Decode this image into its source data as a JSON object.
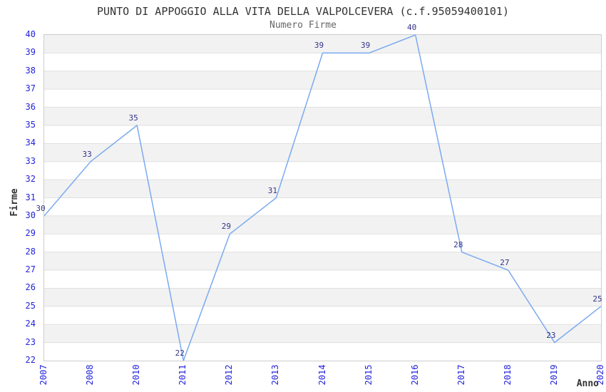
{
  "chart_data": {
    "type": "line",
    "title": "PUNTO DI APPOGGIO ALLA VITA DELLA VALPOLCEVERA (c.f.95059400101)",
    "subtitle": "Numero Firme",
    "xlabel": "Anno",
    "ylabel": "Firme",
    "categories": [
      "2007",
      "2008",
      "2010",
      "2011",
      "2012",
      "2013",
      "2014",
      "2015",
      "2016",
      "2017",
      "2018",
      "2019",
      "2020"
    ],
    "series": [
      {
        "name": "Numero Firme",
        "values": [
          30,
          33,
          35,
          22,
          29,
          31,
          39,
          39,
          40,
          28,
          27,
          23,
          25
        ]
      }
    ],
    "ylim": [
      22,
      40
    ],
    "y_tick_step": 1,
    "grid": true,
    "legend": "none",
    "data_labels_visible": true,
    "x_tick_rotation_deg": -90,
    "colors": {
      "line": "#7aaaf0",
      "tick_label": "#2222dd",
      "data_label": "#333388",
      "band": "#f2f2f2",
      "gridline": "#e0e0e0",
      "plot_border": "#cccccc",
      "title": "#333333",
      "subtitle": "#666666",
      "axis_title": "#333333"
    }
  }
}
